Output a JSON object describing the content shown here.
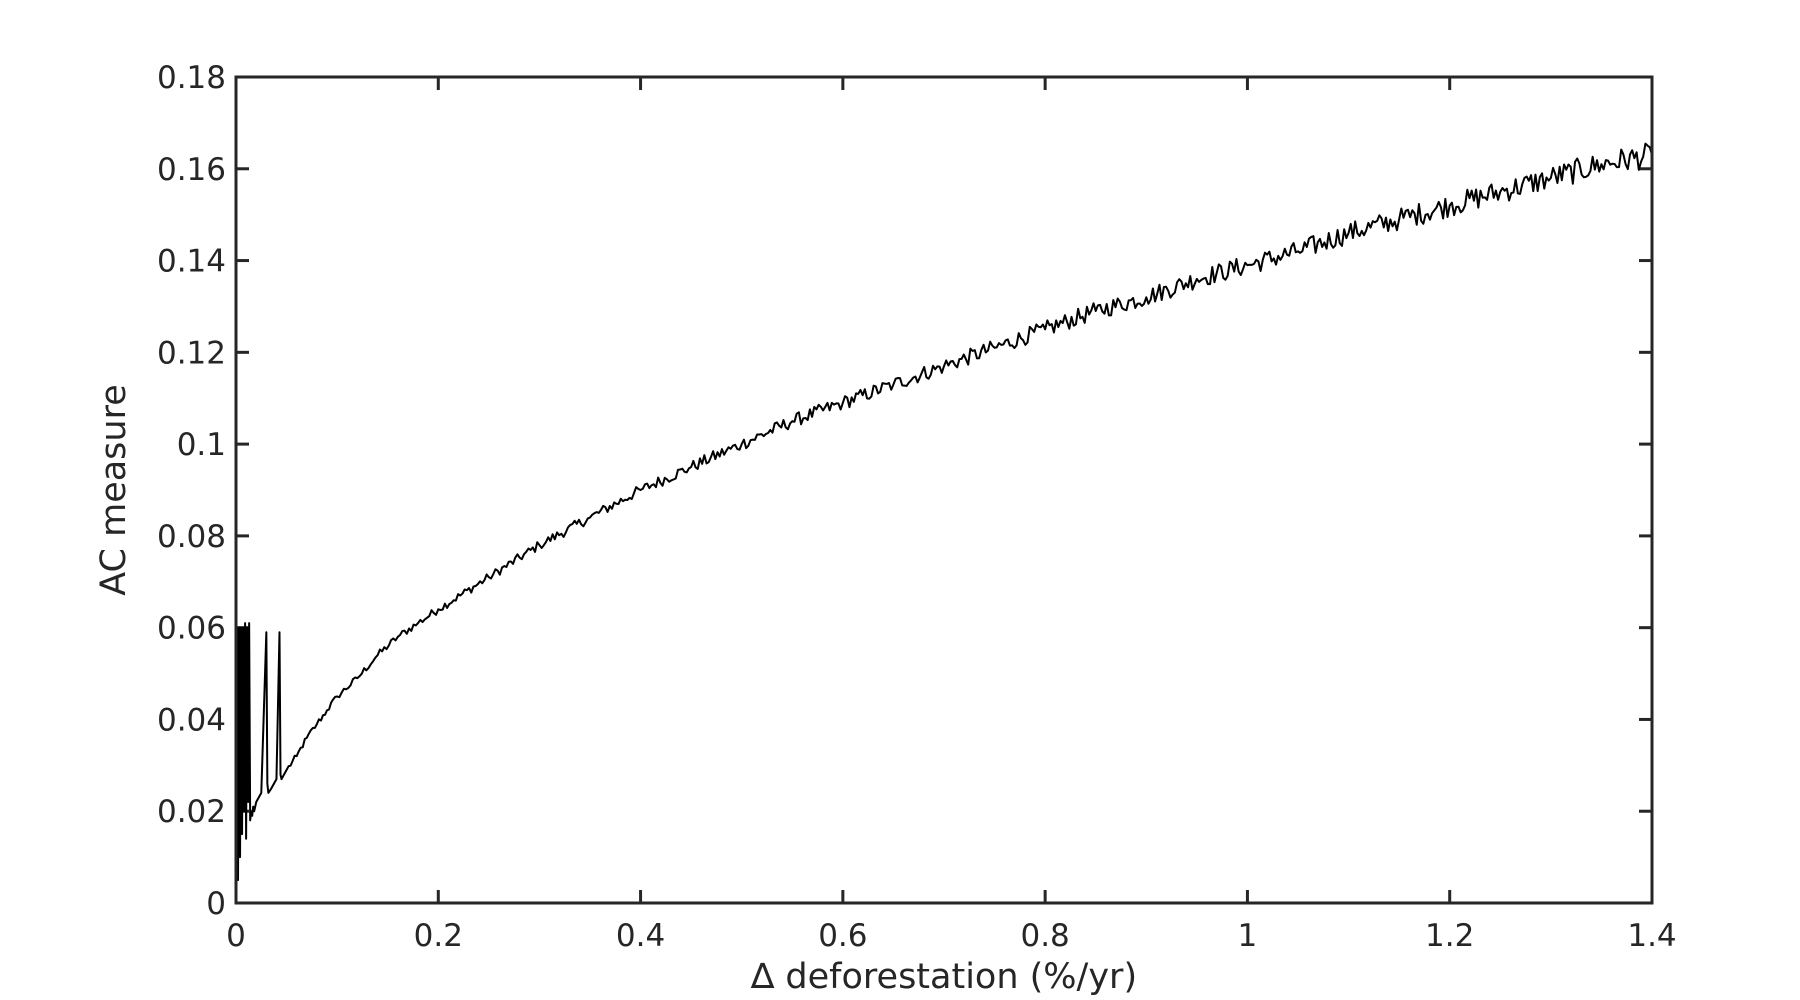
{
  "chart_data": {
    "type": "line",
    "xlabel": "∆ deforestation (%/yr)",
    "ylabel": "AC measure",
    "xlim": [
      0,
      1.4
    ],
    "ylim": [
      0,
      0.18
    ],
    "x_ticks": [
      0,
      0.2,
      0.4,
      0.6,
      0.8,
      1.0,
      1.2,
      1.4
    ],
    "x_tick_labels": [
      "0",
      "0.2",
      "0.4",
      "0.6",
      "0.8",
      "1",
      "1.2",
      "1.4"
    ],
    "y_ticks": [
      0,
      0.02,
      0.04,
      0.06,
      0.08,
      0.1,
      0.12,
      0.14,
      0.16,
      0.18
    ],
    "y_tick_labels": [
      "0",
      "0.02",
      "0.04",
      "0.06",
      "0.08",
      "0.1",
      "0.12",
      "0.14",
      "0.16",
      "0.18"
    ],
    "grid": false,
    "box": true,
    "line_color": "#000000",
    "axis_color": "#262626",
    "series": [
      {
        "x": [
          0,
          0.001,
          0.002,
          0.003,
          0.004,
          0.005,
          0.006,
          0.007,
          0.008,
          0.009,
          0.01,
          0.011,
          0.012,
          0.013,
          0.014,
          0.015,
          0.016,
          0.017,
          0.018,
          0.019,
          0.02,
          0.025,
          0.03,
          0.031,
          0.032,
          0.035,
          0.04,
          0.043,
          0.044,
          0.045,
          0.05,
          0.06,
          0.07,
          0.08,
          0.09,
          0.1,
          0.12,
          0.14,
          0.16,
          0.18,
          0.2,
          0.25,
          0.3,
          0.35,
          0.4,
          0.45,
          0.5,
          0.55,
          0.6,
          0.65,
          0.7,
          0.75,
          0.8,
          0.85,
          0.9,
          0.95,
          1.0,
          1.05,
          1.1,
          1.15,
          1.2,
          1.25,
          1.3,
          1.35,
          1.4
        ],
        "y": [
          0.002,
          0.06,
          0.005,
          0.06,
          0.01,
          0.06,
          0.015,
          0.06,
          0.02,
          0.061,
          0.014,
          0.06,
          0.022,
          0.061,
          0.018,
          0.02,
          0.019,
          0.021,
          0.02,
          0.021,
          0.022,
          0.024,
          0.059,
          0.026,
          0.024,
          0.025,
          0.027,
          0.059,
          0.028,
          0.027,
          0.029,
          0.032,
          0.036,
          0.039,
          0.042,
          0.045,
          0.049,
          0.054,
          0.058,
          0.061,
          0.064,
          0.071,
          0.078,
          0.084,
          0.09,
          0.095,
          0.1,
          0.105,
          0.109,
          0.113,
          0.117,
          0.121,
          0.125,
          0.129,
          0.132,
          0.136,
          0.139,
          0.142,
          0.146,
          0.149,
          0.152,
          0.155,
          0.158,
          0.161,
          0.163
        ]
      }
    ]
  }
}
